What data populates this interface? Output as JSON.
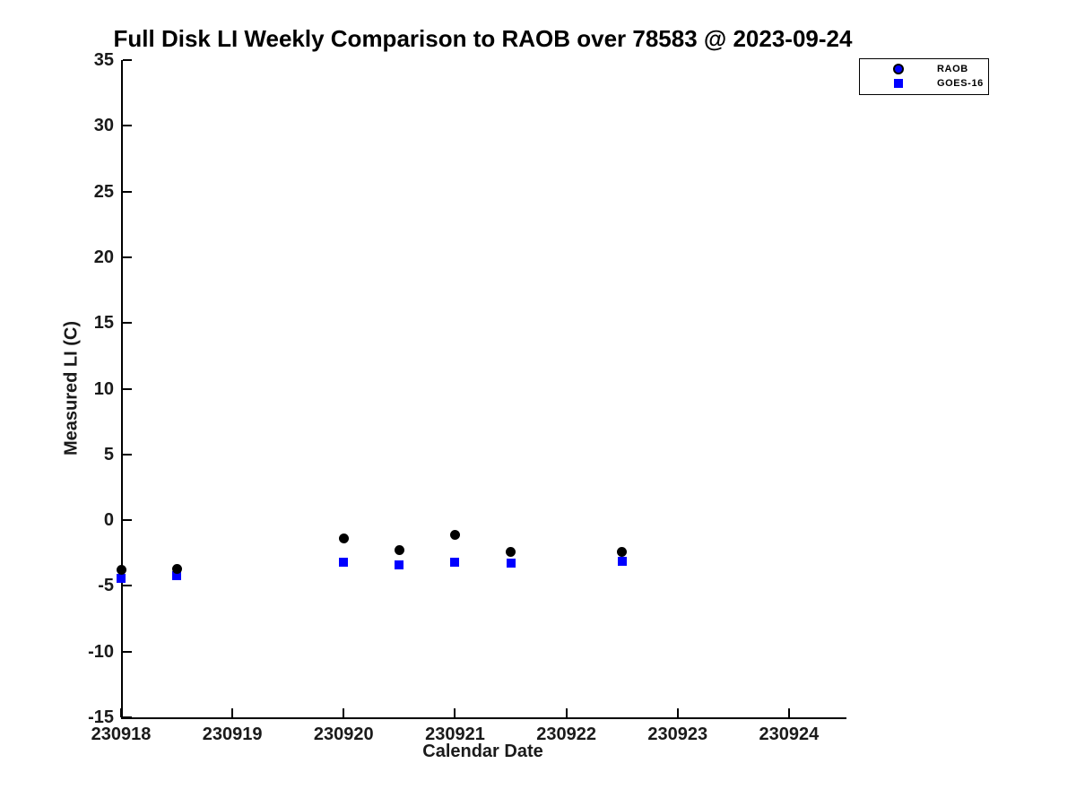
{
  "chart_data": {
    "type": "scatter",
    "title": "Full Disk LI Weekly Comparison to RAOB over 78583 @ 2023-09-24",
    "xlabel": "Calendar Date",
    "ylabel": "Measured LI (C)",
    "xlim": [
      230918,
      230924.5
    ],
    "ylim": [
      -15,
      35
    ],
    "x_tick_values": [
      230918,
      230919,
      230920,
      230921,
      230922,
      230923,
      230924
    ],
    "x_tick_labels": [
      "230918",
      "230919",
      "230920",
      "230921",
      "230922",
      "230923",
      "230924"
    ],
    "y_tick_values": [
      35,
      30,
      25,
      20,
      15,
      10,
      5,
      0,
      -5,
      -10,
      -15
    ],
    "y_tick_labels": [
      "35",
      "30",
      "25",
      "20",
      "15",
      "10",
      "5",
      "0",
      "-5",
      "-10",
      "-15"
    ],
    "grid": false,
    "legend_position": "top-right",
    "series": [
      {
        "name": "RAOB",
        "marker": "circle",
        "plot_color": "#000000",
        "legend_fill": "#0000ff",
        "legend_edge": "#000000",
        "x": [
          230918.0,
          230918.5,
          230920.0,
          230920.5,
          230921.0,
          230921.5,
          230922.5
        ],
        "y": [
          -3.8,
          -3.7,
          -1.4,
          -2.3,
          -1.1,
          -2.4,
          -2.4
        ]
      },
      {
        "name": "GOES-16",
        "marker": "square",
        "plot_color": "#0000ff",
        "legend_fill": "#0000ff",
        "legend_edge": "#0000ff",
        "x": [
          230918.0,
          230918.5,
          230920.0,
          230920.5,
          230921.0,
          230921.5,
          230922.5
        ],
        "y": [
          -4.4,
          -4.2,
          -3.2,
          -3.4,
          -3.2,
          -3.3,
          -3.1
        ]
      }
    ]
  },
  "colors": {
    "background": "#ffffff",
    "axis": "#000000",
    "tick_text": "#1a1a1a"
  }
}
